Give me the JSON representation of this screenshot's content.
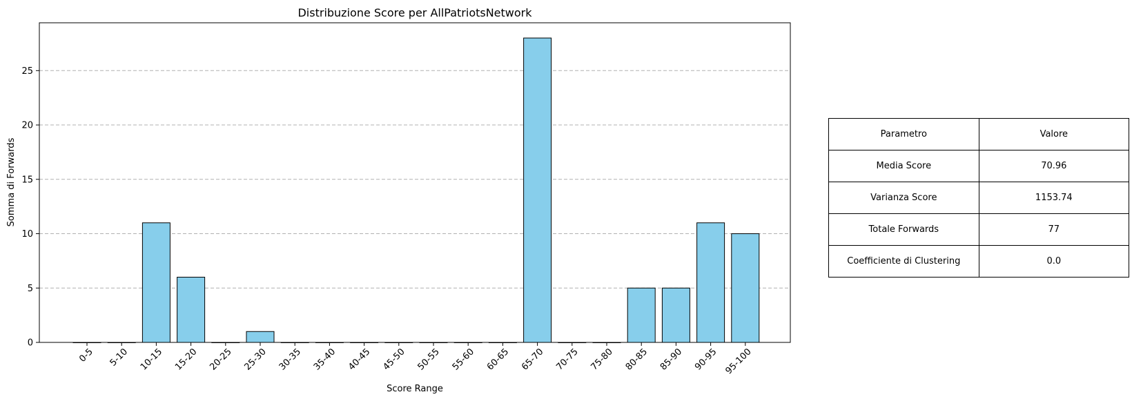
{
  "chart_data": {
    "type": "bar",
    "title": "Distribuzione Score per AllPatriotsNetwork",
    "xlabel": "Score Range",
    "ylabel": "Somma di Forwards",
    "categories": [
      "0-5",
      "5-10",
      "10-15",
      "15-20",
      "20-25",
      "25-30",
      "30-35",
      "35-40",
      "40-45",
      "45-50",
      "50-55",
      "55-60",
      "60-65",
      "65-70",
      "70-75",
      "75-80",
      "80-85",
      "85-90",
      "90-95",
      "95-100"
    ],
    "values": [
      0,
      0,
      11,
      6,
      0,
      1,
      0,
      0,
      0,
      0,
      0,
      0,
      0,
      28,
      0,
      0,
      5,
      5,
      11,
      10
    ],
    "ylim": [
      0,
      29.4
    ],
    "yticks": [
      0,
      5,
      10,
      15,
      20,
      25
    ],
    "grid": "y-dashed",
    "bar_color": "#87CEEB",
    "edge_color": "#000000"
  },
  "table": {
    "header": [
      "Parametro",
      "Valore"
    ],
    "rows": [
      [
        "Media Score",
        "70.96"
      ],
      [
        "Varianza Score",
        "1153.74"
      ],
      [
        "Totale Forwards",
        "77"
      ],
      [
        "Coefficiente di Clustering",
        "0.0"
      ]
    ]
  }
}
